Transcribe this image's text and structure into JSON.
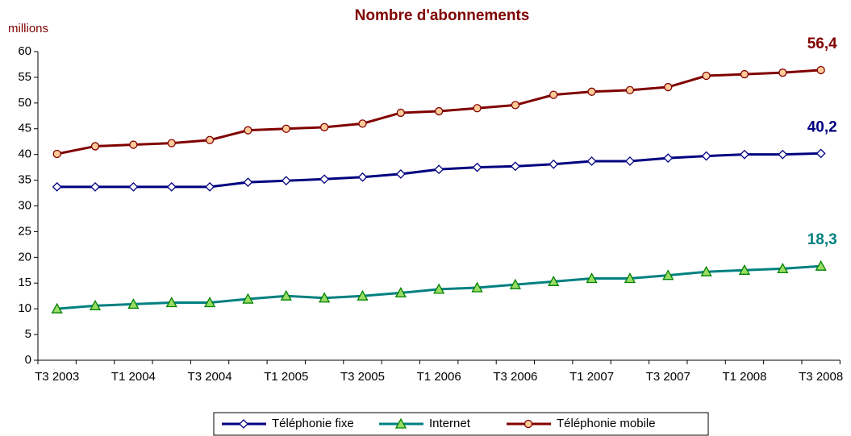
{
  "chart_data": {
    "type": "line",
    "title": "Nombre d'abonnements",
    "ylabel": "millions",
    "categories": [
      "T3 2003",
      null,
      "T1 2004",
      null,
      "T3 2004",
      null,
      "T1 2005",
      null,
      "T3 2005",
      null,
      "T1 2006",
      null,
      "T3 2006",
      null,
      "T1 2007",
      null,
      "T3 2007",
      null,
      "T1 2008",
      null,
      "T3 2008"
    ],
    "series": [
      {
        "name": "Téléphonie fixe",
        "color": "#000080",
        "marker": "diamond",
        "marker_fill": "#ffffff",
        "values": [
          33.7,
          33.7,
          33.7,
          33.7,
          33.7,
          34.6,
          34.9,
          35.2,
          35.6,
          36.2,
          37.1,
          37.5,
          37.7,
          38.1,
          38.7,
          38.7,
          39.3,
          39.7,
          40.0,
          40.0,
          40.2
        ],
        "value_labels": [
          null,
          null,
          null,
          null,
          null,
          null,
          null,
          null,
          null,
          null,
          null,
          null,
          null,
          null,
          null,
          null,
          null,
          null,
          null,
          null,
          "40,2"
        ]
      },
      {
        "name": "Internet",
        "color": "#008080",
        "marker": "triangle",
        "marker_fill": "#99dd66",
        "marker_stroke": "#008000",
        "values": [
          10.0,
          10.6,
          10.9,
          11.2,
          11.2,
          11.9,
          12.5,
          12.1,
          12.5,
          13.1,
          13.8,
          14.1,
          14.7,
          15.3,
          15.9,
          15.9,
          16.5,
          17.2,
          17.5,
          17.8,
          18.3
        ],
        "value_labels": [
          null,
          null,
          null,
          null,
          null,
          null,
          null,
          null,
          null,
          null,
          null,
          null,
          null,
          null,
          null,
          null,
          null,
          null,
          null,
          null,
          "18,3"
        ]
      },
      {
        "name": "Téléphonie mobile",
        "color": "#800000",
        "marker": "circle",
        "marker_fill": "#ffcc99",
        "values": [
          40.1,
          41.6,
          41.9,
          42.2,
          42.8,
          44.7,
          45.0,
          45.3,
          46.0,
          48.1,
          48.4,
          49.0,
          49.6,
          51.6,
          52.2,
          52.5,
          53.1,
          55.3,
          55.6,
          55.9,
          56.4
        ],
        "value_labels": [
          null,
          null,
          null,
          null,
          null,
          null,
          null,
          null,
          null,
          null,
          null,
          null,
          null,
          null,
          null,
          null,
          null,
          null,
          null,
          null,
          "56,4"
        ]
      }
    ],
    "ylim": [
      0,
      60
    ],
    "yticks": [
      0,
      5,
      10,
      15,
      20,
      25,
      30,
      35,
      40,
      45,
      50,
      55,
      60
    ],
    "grid": false,
    "legend": "bottom"
  }
}
